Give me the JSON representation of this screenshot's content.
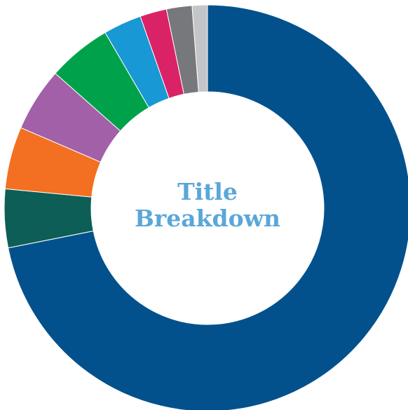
{
  "chart_data": {
    "type": "pie",
    "donut": true,
    "title_lines": [
      "Title",
      "Breakdown"
    ],
    "slices": [
      {
        "value": 71.0,
        "color": "#02518c"
      },
      {
        "value": 4.6,
        "color": "#0e5e58"
      },
      {
        "value": 4.9,
        "color": "#f36f21"
      },
      {
        "value": 5.0,
        "color": "#a260a8"
      },
      {
        "value": 5.0,
        "color": "#00a14b"
      },
      {
        "value": 3.0,
        "color": "#1898d5"
      },
      {
        "value": 2.1,
        "color": "#da2366"
      },
      {
        "value": 2.0,
        "color": "#76787b"
      },
      {
        "value": 1.2,
        "color": "#c4c5c8"
      }
    ],
    "start_angle_deg": 0,
    "direction": "clockwise",
    "legend": "none"
  },
  "colors": {
    "title": "#5aa7d9",
    "background": "#ffffff"
  }
}
